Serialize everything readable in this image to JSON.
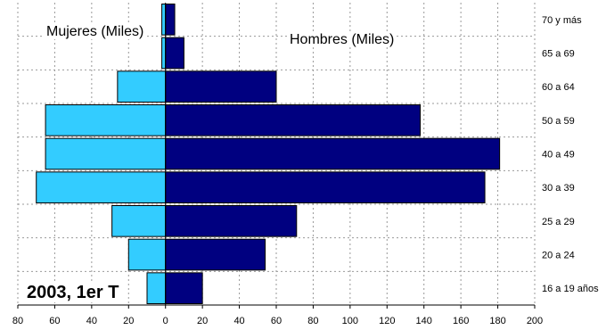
{
  "chart_data": {
    "type": "bar",
    "orientation": "horizontal",
    "subtype": "population-pyramid",
    "categories": [
      "16 a 19 años",
      "20 a 24",
      "25 a 29",
      "30 a 39",
      "40 a 49",
      "50 a 59",
      "60 a 64",
      "65 a 69",
      "70 y más"
    ],
    "series": [
      {
        "name": "Mujeres (Miles)",
        "side": "left",
        "color": "#33CCFF",
        "values": [
          10,
          20,
          29,
          70,
          65,
          65,
          26,
          2,
          2
        ]
      },
      {
        "name": "Hombres (Miles)",
        "side": "right",
        "color": "#000080",
        "values": [
          20,
          54,
          71,
          173,
          181,
          138,
          60,
          10,
          5
        ]
      }
    ],
    "xlim": [
      -80,
      200
    ],
    "x_ticks": [
      -80,
      -60,
      -40,
      -20,
      0,
      20,
      40,
      60,
      80,
      100,
      120,
      140,
      160,
      180,
      200
    ],
    "x_tick_labels": [
      "80",
      "60",
      "40",
      "20",
      "0",
      "20",
      "40",
      "60",
      "80",
      "100",
      "120",
      "140",
      "160",
      "180",
      "200"
    ],
    "grid": "vertical-dashed",
    "annotation": "2003, 1er T"
  }
}
